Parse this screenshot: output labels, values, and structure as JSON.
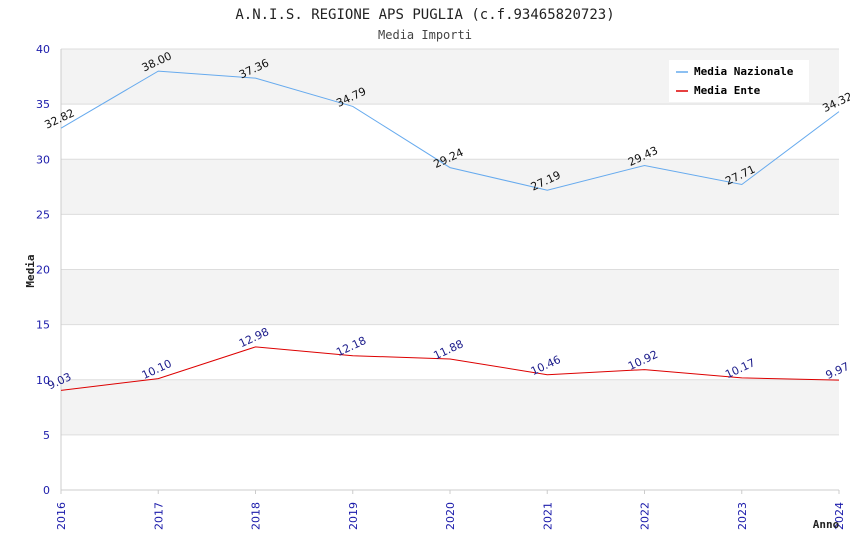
{
  "chart_data": {
    "type": "line",
    "title": "A.N.I.S. REGIONE APS PUGLIA (c.f.93465820723)",
    "subtitle": "Media Importi",
    "xlabel": "Anno",
    "ylabel": "Media",
    "ylim": [
      0,
      40
    ],
    "yticks": [
      0,
      5,
      10,
      15,
      20,
      25,
      30,
      35,
      40
    ],
    "categories": [
      "2016",
      "2017",
      "2018",
      "2019",
      "2020",
      "2021",
      "2022",
      "2023",
      "2024"
    ],
    "series": [
      {
        "name": "Media Nazionale",
        "color": "#66aaee",
        "values": [
          32.82,
          38.0,
          37.36,
          34.79,
          29.24,
          27.19,
          29.43,
          27.71,
          34.32
        ],
        "labels": [
          "32.82",
          "38.00",
          "37.36",
          "34.79",
          "29.24",
          "27.19",
          "29.43",
          "27.71",
          "34.32"
        ]
      },
      {
        "name": "Media Ente",
        "color": "#dd0000",
        "values": [
          9.03,
          10.1,
          12.98,
          12.18,
          11.88,
          10.46,
          10.92,
          10.17,
          9.97
        ],
        "labels": [
          "9.03",
          "10.10",
          "12.98",
          "12.18",
          "11.88",
          "10.46",
          "10.92",
          "10.17",
          "9.97"
        ]
      }
    ],
    "legend_position": "top-right"
  }
}
